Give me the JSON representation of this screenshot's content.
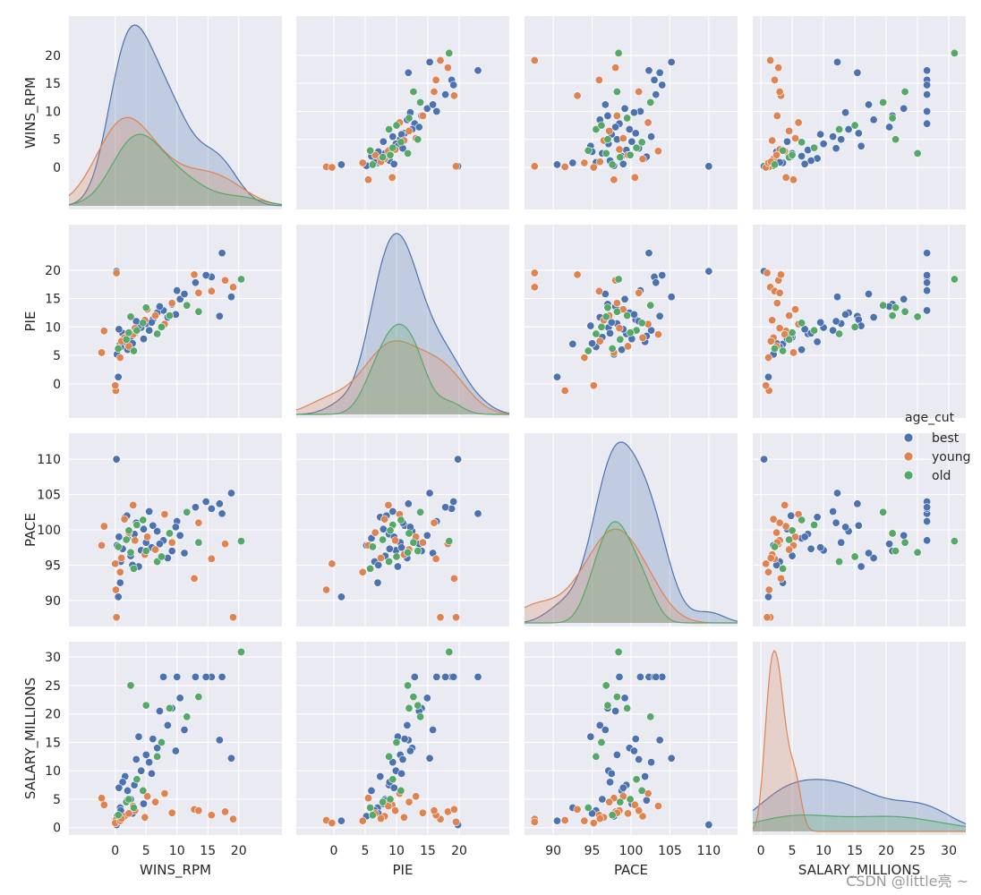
{
  "watermark": "CSDN @little亮 ~",
  "chart_data": {
    "type": "pairplot",
    "hue": "age_cut",
    "legend": {
      "title": "age_cut",
      "placement": "right",
      "entries": [
        {
          "name": "best",
          "color": "#4c72b0"
        },
        {
          "name": "young",
          "color": "#dd8452"
        },
        {
          "name": "old",
          "color": "#55a868"
        }
      ]
    },
    "variables": [
      "WINS_RPM",
      "PIE",
      "PACE",
      "SALARY_MILLIONS"
    ],
    "axes": {
      "WINS_RPM": {
        "range": [
          -7.5,
          27
        ],
        "ticks": [
          0,
          5,
          10,
          15,
          20
        ],
        "tick_labels": [
          "0",
          "5",
          "10",
          "15",
          "20"
        ],
        "lower_axis_range": [
          -3.5,
          21.8
        ],
        "lower_axis_ticks": [
          0,
          10,
          20
        ]
      },
      "PIE": {
        "range": [
          -6,
          28
        ],
        "ticks": [
          0,
          5,
          10,
          15,
          20
        ],
        "tick_labels": [
          "0",
          "5",
          "10",
          "15",
          "20"
        ],
        "lower_axis_range": [
          -3,
          24
        ],
        "lower_axis_ticks": [
          0,
          10,
          20
        ]
      },
      "PACE": {
        "range": [
          86.3,
          113.7
        ],
        "ticks": [
          90,
          95,
          100,
          105,
          110
        ],
        "tick_labels": [
          "90",
          "95",
          "100",
          "105",
          "110"
        ],
        "lower_axis_range": [
          83,
          117
        ],
        "lower_axis_ticks": [
          90,
          100,
          110
        ]
      },
      "SALARY_MILLIONS": {
        "range": [
          -1.3,
          32.7
        ],
        "ticks": [
          0,
          5,
          10,
          15,
          20,
          25,
          30
        ],
        "tick_labels": [
          "0",
          "5",
          "10",
          "15",
          "20",
          "25",
          "30"
        ],
        "lower_axis_range": [
          -12,
          42
        ],
        "lower_axis_ticks": [
          0,
          20,
          40
        ]
      }
    },
    "grid": true,
    "diagonal": "kde",
    "points": {
      "best": [
        {
          "WINS_RPM": 17.3,
          "PIE": 23.0,
          "PACE": 102.3,
          "SALARY_MILLIONS": 26.5
        },
        {
          "WINS_RPM": 18.8,
          "PIE": 15.3,
          "PACE": 105.2,
          "SALARY_MILLIONS": 12.2
        },
        {
          "WINS_RPM": 15.6,
          "PIE": 18.8,
          "PACE": 103.0,
          "SALARY_MILLIONS": 26.5
        },
        {
          "WINS_RPM": 16.9,
          "PIE": 11.9,
          "PACE": 103.7,
          "SALARY_MILLIONS": 15.4
        },
        {
          "WINS_RPM": 14.7,
          "PIE": 19.1,
          "PACE": 104.0,
          "SALARY_MILLIONS": 26.5
        },
        {
          "WINS_RPM": 13.0,
          "PIE": 17.8,
          "PACE": 103.2,
          "SALARY_MILLIONS": 26.5
        },
        {
          "WINS_RPM": 0.2,
          "PIE": 19.8,
          "PACE": 110.0,
          "SALARY_MILLIONS": 0.5
        },
        {
          "WINS_RPM": 0.8,
          "PIE": 7.0,
          "PACE": 92.5,
          "SALARY_MILLIONS": 3.5
        },
        {
          "WINS_RPM": 0.5,
          "PIE": 1.2,
          "PACE": 90.5,
          "SALARY_MILLIONS": 1.2
        },
        {
          "WINS_RPM": 10.0,
          "PIE": 16.4,
          "PACE": 101.2,
          "SALARY_MILLIONS": 26.5
        },
        {
          "WINS_RPM": 10.5,
          "PIE": 14.9,
          "PACE": 99.2,
          "SALARY_MILLIONS": 22.8
        },
        {
          "WINS_RPM": 9.2,
          "PIE": 14.0,
          "PACE": 97.0,
          "SALARY_MILLIONS": 21.0
        },
        {
          "WINS_RPM": 7.8,
          "PIE": 12.9,
          "PACE": 98.5,
          "SALARY_MILLIONS": 26.5
        },
        {
          "WINS_RPM": 6.1,
          "PIE": 11.3,
          "PACE": 100.6,
          "SALARY_MILLIONS": 15.6
        },
        {
          "WINS_RPM": 5.0,
          "PIE": 10.6,
          "PACE": 98.2,
          "SALARY_MILLIONS": 12.8
        },
        {
          "WINS_RPM": 4.2,
          "PIE": 9.9,
          "PACE": 97.1,
          "SALARY_MILLIONS": 10.0
        },
        {
          "WINS_RPM": 3.1,
          "PIE": 8.8,
          "PACE": 99.4,
          "SALARY_MILLIONS": 7.5
        },
        {
          "WINS_RPM": 2.5,
          "PIE": 8.2,
          "PACE": 96.3,
          "SALARY_MILLIONS": 5.0
        },
        {
          "WINS_RPM": 1.6,
          "PIE": 7.4,
          "PACE": 101.8,
          "SALARY_MILLIONS": 9.0
        },
        {
          "WINS_RPM": 0.9,
          "PIE": 6.5,
          "PACE": 95.5,
          "SALARY_MILLIONS": 3.0
        },
        {
          "WINS_RPM": 0.3,
          "PIE": 5.2,
          "PACE": 97.8,
          "SALARY_MILLIONS": 2.0
        },
        {
          "WINS_RPM": 8.5,
          "PIE": 11.7,
          "PACE": 96.0,
          "SALARY_MILLIONS": 18.0
        },
        {
          "WINS_RPM": 6.8,
          "PIE": 12.5,
          "PACE": 99.8,
          "SALARY_MILLIONS": 14.0
        },
        {
          "WINS_RPM": 5.5,
          "PIE": 9.4,
          "PACE": 102.6,
          "SALARY_MILLIONS": 11.5
        },
        {
          "WINS_RPM": 3.8,
          "PIE": 10.2,
          "PACE": 94.8,
          "SALARY_MILLIONS": 16.0
        },
        {
          "WINS_RPM": 2.0,
          "PIE": 6.0,
          "PACE": 98.8,
          "SALARY_MILLIONS": 6.5
        },
        {
          "WINS_RPM": 1.2,
          "PIE": 8.9,
          "PACE": 97.3,
          "SALARY_MILLIONS": 8.0
        },
        {
          "WINS_RPM": 4.6,
          "PIE": 7.9,
          "PACE": 100.1,
          "SALARY_MILLIONS": 4.2
        },
        {
          "WINS_RPM": 7.2,
          "PIE": 13.6,
          "PACE": 98.0,
          "SALARY_MILLIONS": 20.5
        },
        {
          "WINS_RPM": 11.2,
          "PIE": 15.8,
          "PACE": 96.7,
          "SALARY_MILLIONS": 17.2
        },
        {
          "WINS_RPM": 3.4,
          "PIE": 11.0,
          "PACE": 101.0,
          "SALARY_MILLIONS": 12.0
        },
        {
          "WINS_RPM": 0.6,
          "PIE": 9.6,
          "PACE": 99.0,
          "SALARY_MILLIONS": 7.0
        },
        {
          "WINS_RPM": 2.8,
          "PIE": 7.1,
          "PACE": 95.0,
          "SALARY_MILLIONS": 2.5
        },
        {
          "WINS_RPM": 5.9,
          "PIE": 10.8,
          "PACE": 97.5,
          "SALARY_MILLIONS": 9.5
        },
        {
          "WINS_RPM": 9.8,
          "PIE": 12.2,
          "PACE": 100.4,
          "SALARY_MILLIONS": 13.5
        },
        {
          "WINS_RPM": 1.9,
          "PIE": 8.4,
          "PACE": 102.0,
          "SALARY_MILLIONS": 4.8
        }
      ],
      "young": [
        {
          "WINS_RPM": 19.1,
          "PIE": 17.0,
          "PACE": 87.6,
          "SALARY_MILLIONS": 1.5
        },
        {
          "WINS_RPM": 15.6,
          "PIE": 16.3,
          "PACE": 95.9,
          "SALARY_MILLIONS": 2.2
        },
        {
          "WINS_RPM": 17.8,
          "PIE": 18.2,
          "PACE": 98.0,
          "SALARY_MILLIONS": 2.8
        },
        {
          "WINS_RPM": 12.8,
          "PIE": 19.2,
          "PACE": 93.1,
          "SALARY_MILLIONS": 3.2
        },
        {
          "WINS_RPM": 0.2,
          "PIE": 19.5,
          "PACE": 87.6,
          "SALARY_MILLIONS": 1.0
        },
        {
          "WINS_RPM": 0.1,
          "PIE": -1.2,
          "PACE": 91.5,
          "SALARY_MILLIONS": 1.3
        },
        {
          "WINS_RPM": 0.0,
          "PIE": -0.3,
          "PACE": 95.2,
          "SALARY_MILLIONS": 0.8
        },
        {
          "WINS_RPM": -2.2,
          "PIE": 5.5,
          "PACE": 97.8,
          "SALARY_MILLIONS": 5.2
        },
        {
          "WINS_RPM": -1.8,
          "PIE": 9.3,
          "PACE": 100.5,
          "SALARY_MILLIONS": 4.0
        },
        {
          "WINS_RPM": 1.5,
          "PIE": 8.1,
          "PACE": 101.5,
          "SALARY_MILLIONS": 2.0
        },
        {
          "WINS_RPM": 3.2,
          "PIE": 9.8,
          "PACE": 98.5,
          "SALARY_MILLIONS": 3.0
        },
        {
          "WINS_RPM": 4.8,
          "PIE": 11.2,
          "PACE": 96.5,
          "SALARY_MILLIONS": 1.8
        },
        {
          "WINS_RPM": 2.2,
          "PIE": 6.6,
          "PACE": 99.6,
          "SALARY_MILLIONS": 2.5
        },
        {
          "WINS_RPM": 6.5,
          "PIE": 12.0,
          "PACE": 97.2,
          "SALARY_MILLIONS": 4.5
        },
        {
          "WINS_RPM": 8.0,
          "PIE": 10.5,
          "PACE": 102.2,
          "SALARY_MILLIONS": 6.0
        },
        {
          "WINS_RPM": 0.8,
          "PIE": 4.6,
          "PACE": 94.0,
          "SALARY_MILLIONS": 1.2
        },
        {
          "WINS_RPM": 13.5,
          "PIE": 16.0,
          "PACE": 101.0,
          "SALARY_MILLIONS": 3.0
        },
        {
          "WINS_RPM": 2.9,
          "PIE": 8.7,
          "PACE": 103.5,
          "SALARY_MILLIONS": 3.8
        },
        {
          "WINS_RPM": 1.0,
          "PIE": 7.5,
          "PACE": 96.0,
          "SALARY_MILLIONS": 1.6
        },
        {
          "WINS_RPM": 5.2,
          "PIE": 13.1,
          "PACE": 99.0,
          "SALARY_MILLIONS": 5.5
        },
        {
          "WINS_RPM": 9.2,
          "PIE": 14.2,
          "PACE": 98.2,
          "SALARY_MILLIONS": 2.6
        }
      ],
      "old": [
        {
          "WINS_RPM": 20.4,
          "PIE": 18.4,
          "PACE": 98.4,
          "SALARY_MILLIONS": 30.9
        },
        {
          "WINS_RPM": 13.5,
          "PIE": 12.7,
          "PACE": 98.2,
          "SALARY_MILLIONS": 23.0
        },
        {
          "WINS_RPM": 2.5,
          "PIE": 11.8,
          "PACE": 96.8,
          "SALARY_MILLIONS": 25.0
        },
        {
          "WINS_RPM": 5.0,
          "PIE": 13.4,
          "PACE": 97.0,
          "SALARY_MILLIONS": 21.5
        },
        {
          "WINS_RPM": 3.5,
          "PIE": 9.4,
          "PACE": 100.7,
          "SALARY_MILLIONS": 8.5
        },
        {
          "WINS_RPM": 1.8,
          "PIE": 7.8,
          "PACE": 98.6,
          "SALARY_MILLIONS": 4.5
        },
        {
          "WINS_RPM": 8.8,
          "PIE": 12.0,
          "PACE": 99.5,
          "SALARY_MILLIONS": 21.0
        },
        {
          "WINS_RPM": 4.5,
          "PIE": 10.7,
          "PACE": 101.4,
          "SALARY_MILLIONS": 6.5
        },
        {
          "WINS_RPM": 6.8,
          "PIE": 8.8,
          "PACE": 95.5,
          "SALARY_MILLIONS": 12.5
        },
        {
          "WINS_RPM": 0.5,
          "PIE": 6.2,
          "PACE": 97.6,
          "SALARY_MILLIONS": 2.2
        },
        {
          "WINS_RPM": 11.6,
          "PIE": 13.8,
          "PACE": 102.5,
          "SALARY_MILLIONS": 19.5
        },
        {
          "WINS_RPM": 2.2,
          "PIE": 9.0,
          "PACE": 99.9,
          "SALARY_MILLIONS": 5.0
        },
        {
          "WINS_RPM": 3.0,
          "PIE": 5.8,
          "PACE": 94.5,
          "SALARY_MILLIONS": 3.5
        },
        {
          "WINS_RPM": 7.5,
          "PIE": 10.0,
          "PACE": 96.2,
          "SALARY_MILLIONS": 15.0
        }
      ]
    }
  }
}
